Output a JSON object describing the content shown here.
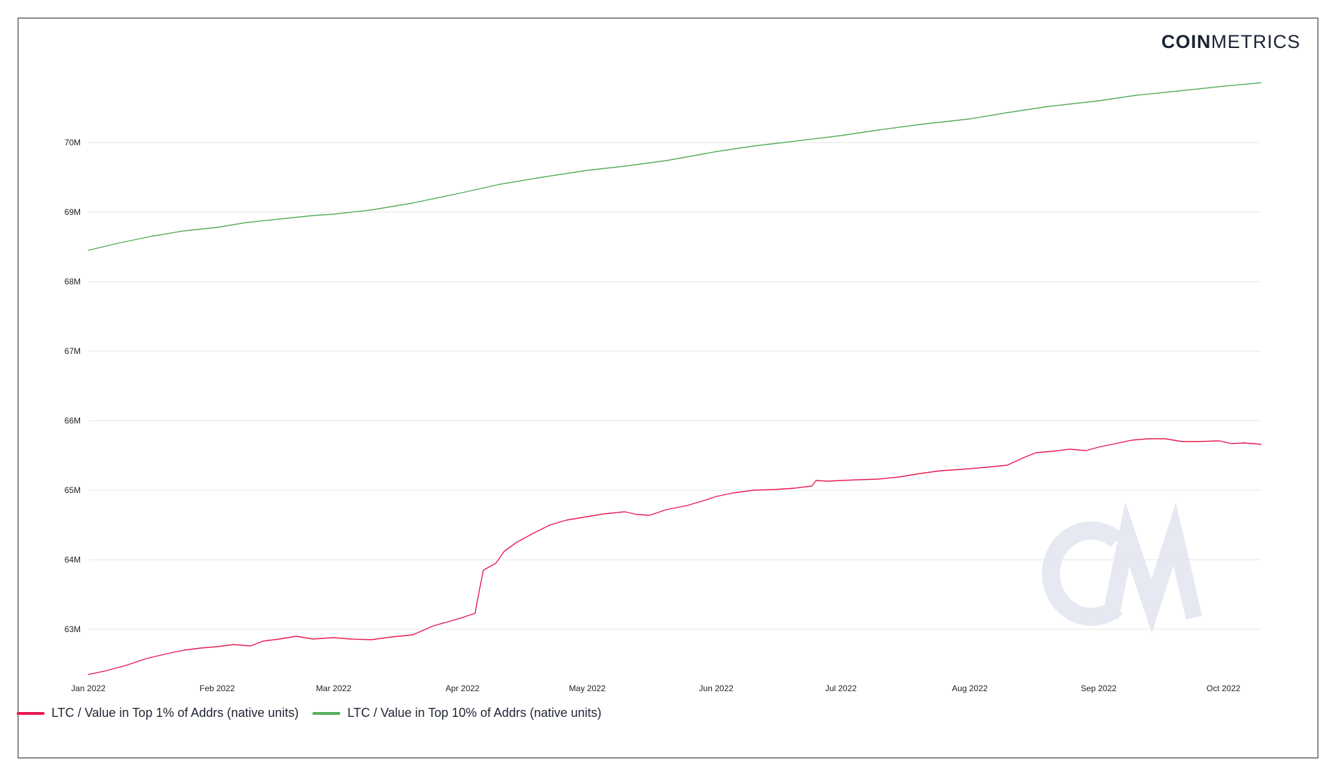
{
  "brand": {
    "part1": "COIN",
    "part2": "METRICS",
    "watermark_text": "CM"
  },
  "colors": {
    "series_top1": "#e8184f",
    "series_top10": "#55ad5c",
    "grid": "#e6e6e6",
    "watermark": "#e6e8f2"
  },
  "chart_data": {
    "type": "line",
    "title": "",
    "xlabel": "",
    "ylabel": "",
    "x_ticks": [
      "Jan 2022",
      "Feb 2022",
      "Mar 2022",
      "Apr 2022",
      "May 2022",
      "Jun 2022",
      "Jul 2022",
      "Aug 2022",
      "Sep 2022",
      "Oct 2022"
    ],
    "x_tick_dates": [
      "2022-01-01",
      "2022-02-01",
      "2022-03-01",
      "2022-04-01",
      "2022-05-01",
      "2022-06-01",
      "2022-07-01",
      "2022-08-01",
      "2022-09-01",
      "2022-10-01"
    ],
    "x_range": [
      "2022-01-01",
      "2022-10-10"
    ],
    "y_ticks": [
      "63M",
      "64M",
      "65M",
      "66M",
      "67M",
      "68M",
      "69M",
      "70M"
    ],
    "y_tick_values": [
      63000000,
      64000000,
      65000000,
      66000000,
      67000000,
      68000000,
      69000000,
      70000000
    ],
    "ylim": [
      62350000,
      71100000
    ],
    "grid": true,
    "legend_position": "bottom-left",
    "series": [
      {
        "name": "LTC / Value in Top 1% of Addrs (native units)",
        "color": "#e8184f",
        "points": [
          [
            "2022-01-01",
            62350000
          ],
          [
            "2022-01-05",
            62400000
          ],
          [
            "2022-01-10",
            62480000
          ],
          [
            "2022-01-15",
            62580000
          ],
          [
            "2022-01-20",
            62650000
          ],
          [
            "2022-01-24",
            62700000
          ],
          [
            "2022-01-28",
            62730000
          ],
          [
            "2022-02-01",
            62750000
          ],
          [
            "2022-02-05",
            62780000
          ],
          [
            "2022-02-09",
            62760000
          ],
          [
            "2022-02-12",
            62830000
          ],
          [
            "2022-02-16",
            62860000
          ],
          [
            "2022-02-20",
            62900000
          ],
          [
            "2022-02-24",
            62860000
          ],
          [
            "2022-03-01",
            62880000
          ],
          [
            "2022-03-05",
            62860000
          ],
          [
            "2022-03-10",
            62850000
          ],
          [
            "2022-03-15",
            62890000
          ],
          [
            "2022-03-20",
            62920000
          ],
          [
            "2022-03-25",
            63050000
          ],
          [
            "2022-03-28",
            63100000
          ],
          [
            "2022-04-01",
            63170000
          ],
          [
            "2022-04-04",
            63230000
          ],
          [
            "2022-04-05",
            63550000
          ],
          [
            "2022-04-06",
            63850000
          ],
          [
            "2022-04-09",
            63950000
          ],
          [
            "2022-04-11",
            64120000
          ],
          [
            "2022-04-14",
            64250000
          ],
          [
            "2022-04-18",
            64380000
          ],
          [
            "2022-04-22",
            64500000
          ],
          [
            "2022-04-26",
            64570000
          ],
          [
            "2022-05-01",
            64620000
          ],
          [
            "2022-05-05",
            64660000
          ],
          [
            "2022-05-10",
            64690000
          ],
          [
            "2022-05-13",
            64650000
          ],
          [
            "2022-05-16",
            64640000
          ],
          [
            "2022-05-20",
            64720000
          ],
          [
            "2022-05-25",
            64780000
          ],
          [
            "2022-05-29",
            64850000
          ],
          [
            "2022-06-01",
            64910000
          ],
          [
            "2022-06-05",
            64960000
          ],
          [
            "2022-06-10",
            65000000
          ],
          [
            "2022-06-15",
            65010000
          ],
          [
            "2022-06-20",
            65030000
          ],
          [
            "2022-06-24",
            65060000
          ],
          [
            "2022-06-25",
            65140000
          ],
          [
            "2022-06-28",
            65130000
          ],
          [
            "2022-07-01",
            65140000
          ],
          [
            "2022-07-05",
            65150000
          ],
          [
            "2022-07-10",
            65160000
          ],
          [
            "2022-07-15",
            65190000
          ],
          [
            "2022-07-20",
            65240000
          ],
          [
            "2022-07-25",
            65280000
          ],
          [
            "2022-07-30",
            65300000
          ],
          [
            "2022-08-01",
            65310000
          ],
          [
            "2022-08-05",
            65330000
          ],
          [
            "2022-08-10",
            65360000
          ],
          [
            "2022-08-14",
            65470000
          ],
          [
            "2022-08-17",
            65540000
          ],
          [
            "2022-08-21",
            65560000
          ],
          [
            "2022-08-25",
            65590000
          ],
          [
            "2022-08-29",
            65570000
          ],
          [
            "2022-09-01",
            65620000
          ],
          [
            "2022-09-05",
            65670000
          ],
          [
            "2022-09-09",
            65720000
          ],
          [
            "2022-09-13",
            65740000
          ],
          [
            "2022-09-17",
            65740000
          ],
          [
            "2022-09-21",
            65700000
          ],
          [
            "2022-09-25",
            65700000
          ],
          [
            "2022-09-30",
            65710000
          ],
          [
            "2022-10-03",
            65670000
          ],
          [
            "2022-10-06",
            65680000
          ],
          [
            "2022-10-10",
            65660000
          ]
        ]
      },
      {
        "name": "LTC / Value in Top 10% of Addrs (native units)",
        "color": "#55ad5c",
        "points": [
          [
            "2022-01-01",
            68450000
          ],
          [
            "2022-01-08",
            68550000
          ],
          [
            "2022-01-16",
            68650000
          ],
          [
            "2022-01-24",
            68730000
          ],
          [
            "2022-02-01",
            68780000
          ],
          [
            "2022-02-08",
            68850000
          ],
          [
            "2022-02-16",
            68900000
          ],
          [
            "2022-02-24",
            68950000
          ],
          [
            "2022-03-01",
            68970000
          ],
          [
            "2022-03-10",
            69030000
          ],
          [
            "2022-03-20",
            69130000
          ],
          [
            "2022-04-01",
            69280000
          ],
          [
            "2022-04-10",
            69400000
          ],
          [
            "2022-04-20",
            69500000
          ],
          [
            "2022-05-01",
            69600000
          ],
          [
            "2022-05-10",
            69660000
          ],
          [
            "2022-05-20",
            69740000
          ],
          [
            "2022-06-01",
            69870000
          ],
          [
            "2022-06-10",
            69950000
          ],
          [
            "2022-06-20",
            70020000
          ],
          [
            "2022-07-01",
            70100000
          ],
          [
            "2022-07-10",
            70180000
          ],
          [
            "2022-07-20",
            70260000
          ],
          [
            "2022-08-01",
            70340000
          ],
          [
            "2022-08-10",
            70430000
          ],
          [
            "2022-08-20",
            70520000
          ],
          [
            "2022-09-01",
            70600000
          ],
          [
            "2022-09-10",
            70680000
          ],
          [
            "2022-09-20",
            70740000
          ],
          [
            "2022-10-01",
            70810000
          ],
          [
            "2022-10-10",
            70860000
          ]
        ]
      }
    ]
  }
}
